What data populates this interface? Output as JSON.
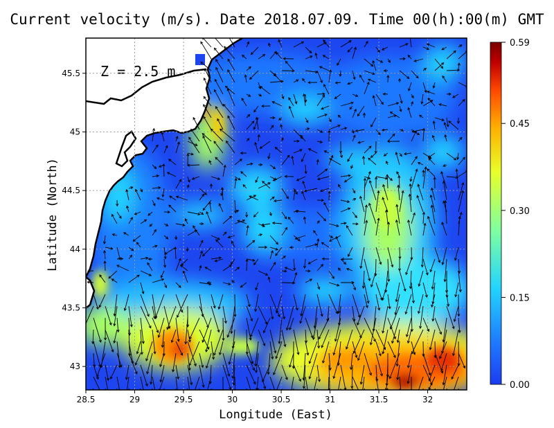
{
  "title": "Current velocity (m/s). Date 2018.07.09. Time 00(h):00(m) GMT",
  "depth_label": "Z = 2.5 m",
  "x_axis": {
    "label": "Longitude (East)",
    "range": [
      28.5,
      32.4
    ],
    "ticks": [
      "28.5",
      "29",
      "29.5",
      "30",
      "30.5",
      "31",
      "31.5",
      "32"
    ]
  },
  "y_axis": {
    "label": "Latitude (North)",
    "range": [
      42.8,
      45.8
    ],
    "ticks": [
      "43",
      "43.5",
      "44",
      "44.5",
      "45",
      "45.5"
    ]
  },
  "colorbar": {
    "range": [
      0.0,
      0.59
    ],
    "ticks": [
      "0.59",
      "0.45",
      "0.30",
      "0.15",
      "0.00"
    ],
    "colors": [
      "#1c3cf0",
      "#1e78ff",
      "#22d4ff",
      "#7fffa0",
      "#e8ff2a",
      "#ffb000",
      "#ff4800",
      "#c00000",
      "#7a0000"
    ]
  },
  "chart_data": {
    "type": "heatmap",
    "variable": "Current velocity (m/s)",
    "xlabel": "Longitude (East)",
    "ylabel": "Latitude (North)",
    "xlim": [
      28.5,
      32.4
    ],
    "ylim": [
      42.8,
      45.8
    ],
    "zlim": [
      0.0,
      0.59
    ],
    "colorbar_ticks": [
      0.59,
      0.45,
      0.3,
      0.15,
      0.0
    ],
    "grid": true,
    "overlay": "velocity arrows",
    "features": [
      {
        "lon": 32.0,
        "lat": 43.0,
        "speed": 0.55
      },
      {
        "lon": 31.8,
        "lat": 42.9,
        "speed": 0.58
      },
      {
        "lon": 31.2,
        "lat": 43.1,
        "speed": 0.45
      },
      {
        "lon": 30.8,
        "lat": 43.0,
        "speed": 0.38
      },
      {
        "lon": 29.4,
        "lat": 43.1,
        "speed": 0.48
      },
      {
        "lon": 29.5,
        "lat": 43.3,
        "speed": 0.42
      },
      {
        "lon": 28.7,
        "lat": 43.3,
        "speed": 0.38
      },
      {
        "lon": 31.5,
        "lat": 44.2,
        "speed": 0.32
      },
      {
        "lon": 31.6,
        "lat": 44.5,
        "speed": 0.3
      },
      {
        "lon": 29.7,
        "lat": 45.0,
        "speed": 0.4
      },
      {
        "lon": 28.6,
        "lat": 43.7,
        "speed": 0.3
      },
      {
        "lon": 30.3,
        "lat": 44.4,
        "speed": 0.22
      }
    ]
  }
}
